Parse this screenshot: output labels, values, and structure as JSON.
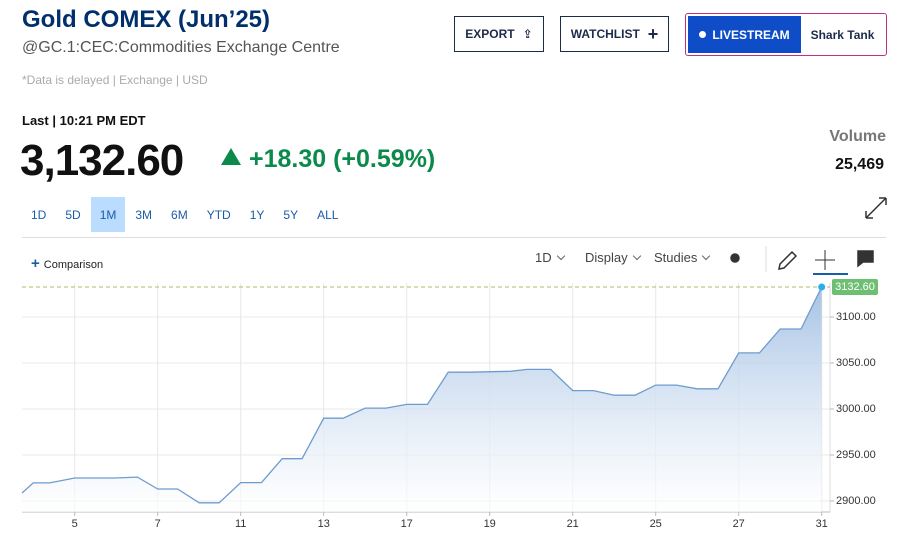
{
  "header": {
    "title": "Gold COMEX (Jun’25)",
    "symbol": "@GC.1:CEC:Commodities Exchange Centre",
    "note": "*Data is delayed | Exchange | USD",
    "last_time": "Last | 10:21 PM EDT",
    "price": "3,132.60",
    "change": "+18.30 (+0.59%)",
    "volume_label": "Volume",
    "volume": "25,469"
  },
  "buttons": {
    "export": "EXPORT",
    "watchlist": "WATCHLIST",
    "livestream": "LIVESTREAM",
    "show": "Shark Tank"
  },
  "ranges": {
    "items": [
      "1D",
      "5D",
      "1M",
      "3M",
      "6M",
      "YTD",
      "1Y",
      "5Y",
      "ALL"
    ],
    "selected": "1M"
  },
  "toolbar": {
    "comparison": "Comparison",
    "interval": "1D",
    "display": "Display",
    "studies": "Studies"
  },
  "chart_data": {
    "type": "area",
    "color": "#6e9ccf",
    "x": [
      -0.27,
      0,
      0.4,
      1,
      1.96,
      2.51,
      3,
      3.48,
      4,
      4.48,
      5,
      5.5,
      6,
      6.48,
      7,
      7.47,
      8,
      8.5,
      9,
      9.5,
      10,
      10.5,
      11.5,
      11.9,
      12.47,
      13,
      13.5,
      14,
      14.5,
      15,
      15.5,
      16,
      16.5,
      17,
      17.5,
      18,
      18.5,
      19
    ],
    "values": [
      2908.7,
      2919.6,
      2919.6,
      2925,
      2925,
      2926,
      2913,
      2913,
      2898,
      2898,
      2920,
      2920,
      2946,
      2946,
      2990,
      2990,
      3001,
      3001,
      3005,
      3005,
      3040,
      3040,
      3041,
      3043,
      3043,
      3020,
      3020,
      3015,
      3015,
      3026,
      3026,
      3022,
      3022,
      3061,
      3061,
      3087,
      3087,
      3132.6
    ],
    "last_label": "3132.60",
    "xlim": [
      -0.27,
      19.2
    ],
    "xticks": [
      {
        "value": 1,
        "label": "5"
      },
      {
        "value": 3,
        "label": "7"
      },
      {
        "value": 5,
        "label": "11"
      },
      {
        "value": 7,
        "label": "13"
      },
      {
        "value": 9,
        "label": "17"
      },
      {
        "value": 11,
        "label": "19"
      },
      {
        "value": 13,
        "label": "21"
      },
      {
        "value": 15,
        "label": "25"
      },
      {
        "value": 17,
        "label": "27"
      },
      {
        "value": 19,
        "label": "31"
      }
    ],
    "ylim": [
      2888,
      3137
    ],
    "yticks": [
      {
        "value": 2900,
        "label": "2900.00"
      },
      {
        "value": 2950,
        "label": "2950.00"
      },
      {
        "value": 3000,
        "label": "3000.00"
      },
      {
        "value": 3050,
        "label": "3050.00"
      },
      {
        "value": 3100,
        "label": "3100.00"
      }
    ],
    "grid": true
  }
}
